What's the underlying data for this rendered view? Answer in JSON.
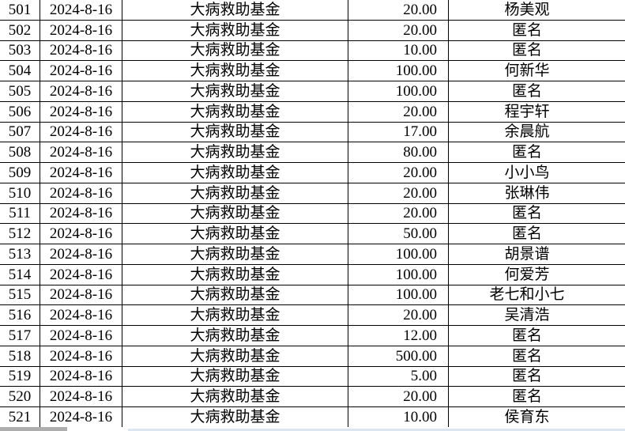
{
  "colors": {
    "background": "#ffffff",
    "border": "#000000",
    "text": "#000000",
    "scrollbar_thumb": "#aeaeae",
    "scrollbar_track": "#dce6f2"
  },
  "table": {
    "description": "donation-ledger-table",
    "columns": [
      "serial",
      "date",
      "fund",
      "amount",
      "donor"
    ],
    "rows": [
      {
        "serial": "501",
        "date": "2024-8-16",
        "fund": "大病救助基金",
        "amount": "20.00",
        "donor": "杨美观"
      },
      {
        "serial": "502",
        "date": "2024-8-16",
        "fund": "大病救助基金",
        "amount": "20.00",
        "donor": "匿名"
      },
      {
        "serial": "503",
        "date": "2024-8-16",
        "fund": "大病救助基金",
        "amount": "10.00",
        "donor": "匿名"
      },
      {
        "serial": "504",
        "date": "2024-8-16",
        "fund": "大病救助基金",
        "amount": "100.00",
        "donor": "何新华"
      },
      {
        "serial": "505",
        "date": "2024-8-16",
        "fund": "大病救助基金",
        "amount": "100.00",
        "donor": "匿名"
      },
      {
        "serial": "506",
        "date": "2024-8-16",
        "fund": "大病救助基金",
        "amount": "20.00",
        "donor": "程宇轩"
      },
      {
        "serial": "507",
        "date": "2024-8-16",
        "fund": "大病救助基金",
        "amount": "17.00",
        "donor": "余晨航"
      },
      {
        "serial": "508",
        "date": "2024-8-16",
        "fund": "大病救助基金",
        "amount": "80.00",
        "donor": "匿名"
      },
      {
        "serial": "509",
        "date": "2024-8-16",
        "fund": "大病救助基金",
        "amount": "20.00",
        "donor": "小小鸟"
      },
      {
        "serial": "510",
        "date": "2024-8-16",
        "fund": "大病救助基金",
        "amount": "20.00",
        "donor": "张琳伟"
      },
      {
        "serial": "511",
        "date": "2024-8-16",
        "fund": "大病救助基金",
        "amount": "20.00",
        "donor": "匿名"
      },
      {
        "serial": "512",
        "date": "2024-8-16",
        "fund": "大病救助基金",
        "amount": "50.00",
        "donor": "匿名"
      },
      {
        "serial": "513",
        "date": "2024-8-16",
        "fund": "大病救助基金",
        "amount": "100.00",
        "donor": "胡景谱"
      },
      {
        "serial": "514",
        "date": "2024-8-16",
        "fund": "大病救助基金",
        "amount": "100.00",
        "donor": "何爱芳"
      },
      {
        "serial": "515",
        "date": "2024-8-16",
        "fund": "大病救助基金",
        "amount": "100.00",
        "donor": "老七和小七"
      },
      {
        "serial": "516",
        "date": "2024-8-16",
        "fund": "大病救助基金",
        "amount": "20.00",
        "donor": "吴清浩"
      },
      {
        "serial": "517",
        "date": "2024-8-16",
        "fund": "大病救助基金",
        "amount": "12.00",
        "donor": "匿名"
      },
      {
        "serial": "518",
        "date": "2024-8-16",
        "fund": "大病救助基金",
        "amount": "500.00",
        "donor": "匿名"
      },
      {
        "serial": "519",
        "date": "2024-8-16",
        "fund": "大病救助基金",
        "amount": "5.00",
        "donor": "匿名"
      },
      {
        "serial": "520",
        "date": "2024-8-16",
        "fund": "大病救助基金",
        "amount": "20.00",
        "donor": "匿名"
      },
      {
        "serial": "521",
        "date": "2024-8-16",
        "fund": "大病救助基金",
        "amount": "10.00",
        "donor": "侯育东"
      }
    ]
  }
}
